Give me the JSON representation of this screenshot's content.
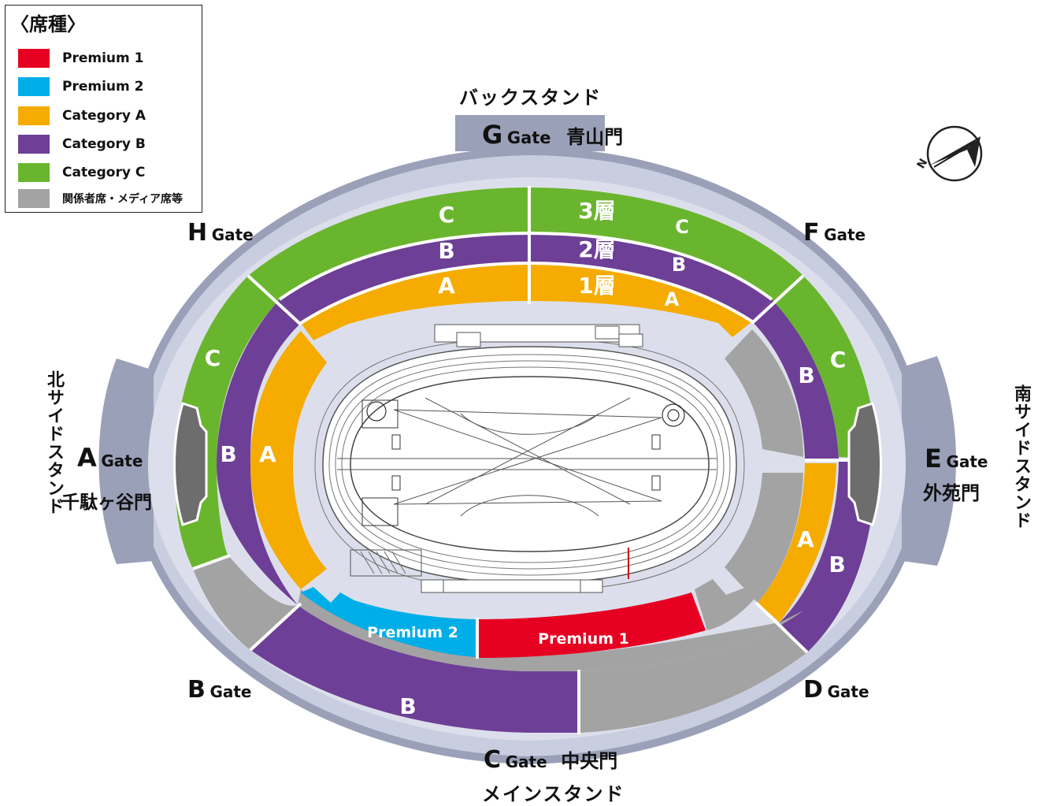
{
  "legend": {
    "title": "〈席種〉",
    "items": [
      {
        "label": "Premium 1",
        "color": "#e60021"
      },
      {
        "label": "Premium 2",
        "color": "#00aee7"
      },
      {
        "label": "Category A",
        "color": "#f5ab00"
      },
      {
        "label": "Category B",
        "color": "#6e3f96"
      },
      {
        "label": "Category C",
        "color": "#6ab52e"
      },
      {
        "label": "関係者席・メディア席等",
        "color": "#a3a3a3"
      }
    ]
  },
  "stands": {
    "back": "バックスタンド",
    "main": "メインスタンド",
    "north": "北サイドスタンド",
    "south": "南サイドスタンド"
  },
  "gates": {
    "word": "Gate",
    "g": {
      "letter": "G",
      "name": "青山門"
    },
    "h": {
      "letter": "H"
    },
    "f": {
      "letter": "F"
    },
    "a": {
      "letter": "A",
      "name": "千駄ヶ谷門"
    },
    "e": {
      "letter": "E",
      "name": "外苑門"
    },
    "b": {
      "letter": "B"
    },
    "d": {
      "letter": "D"
    },
    "c": {
      "letter": "C",
      "name": "中央門"
    }
  },
  "tiers": {
    "t3": "3層",
    "t2": "2層",
    "t1": "1層"
  },
  "section_labels": {
    "c": "C",
    "b": "B",
    "a": "A",
    "premium1": "Premium 1",
    "premium2": "Premium 2"
  },
  "compass": {
    "north": "N"
  },
  "colors": {
    "concourse": "#cfd3e2",
    "outer_ring": "#9aa0b8",
    "grey": "#a3a3a3"
  }
}
